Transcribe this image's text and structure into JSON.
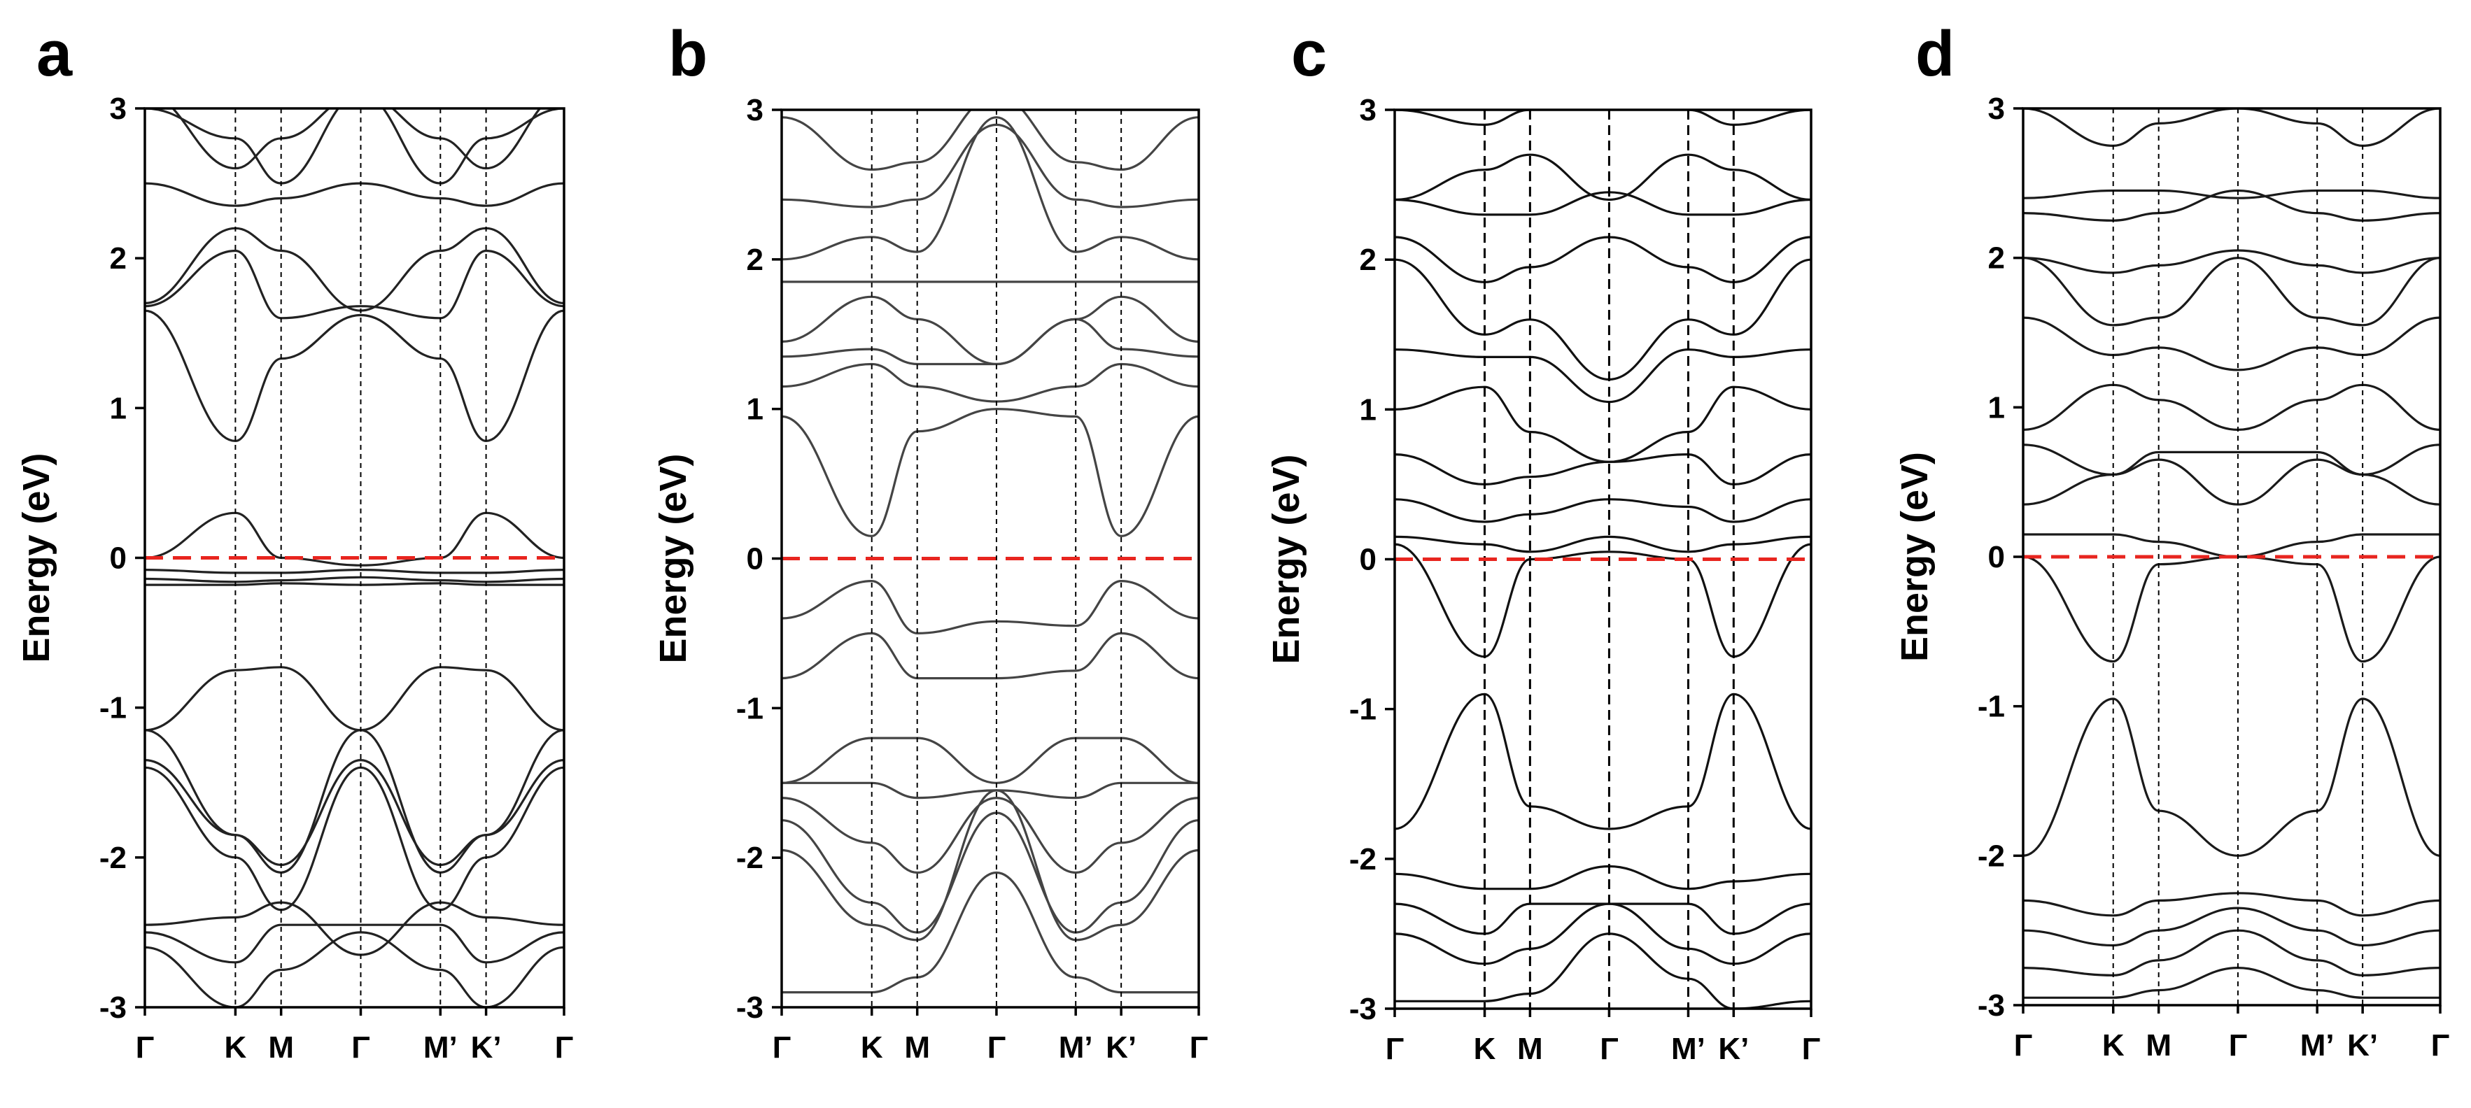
{
  "figure": {
    "panels": [
      "a",
      "b",
      "c",
      "d"
    ]
  },
  "colors": {
    "band": "#1a1a1a",
    "fermi_level": "#e8251f",
    "axes": "#000000",
    "kpoint_divider": "#000000"
  },
  "chart_data": [
    {
      "panel": "a",
      "type": "line",
      "ylabel": "Energy (eV)",
      "ylim": [
        -3,
        3
      ],
      "yticks": [
        "3",
        "2",
        "1",
        "0",
        "-1",
        "-2",
        "-3"
      ],
      "kpath": [
        "Γ",
        "K",
        "M",
        "Γ",
        "M’",
        "K’",
        "Γ"
      ],
      "fermi_level": 0,
      "band_color": "#222222",
      "series": [
        {
          "name": "band-1",
          "values": [
            -2.6,
            -3.0,
            -2.75,
            -2.5,
            -2.75,
            -3.0,
            -2.6
          ]
        },
        {
          "name": "band-2",
          "values": [
            -2.5,
            -2.7,
            -2.45,
            -2.45,
            -2.45,
            -2.7,
            -2.5
          ]
        },
        {
          "name": "band-3",
          "values": [
            -2.45,
            -2.4,
            -2.3,
            -2.65,
            -2.3,
            -2.4,
            -2.45
          ]
        },
        {
          "name": "band-4",
          "values": [
            -1.4,
            -2.0,
            -2.35,
            -1.4,
            -2.35,
            -2.0,
            -1.4
          ]
        },
        {
          "name": "band-5",
          "values": [
            -1.35,
            -1.85,
            -2.05,
            -1.35,
            -2.05,
            -1.85,
            -1.35
          ]
        },
        {
          "name": "band-6",
          "values": [
            -1.15,
            -1.85,
            -2.1,
            -1.15,
            -2.1,
            -1.85,
            -1.15
          ]
        },
        {
          "name": "band-7",
          "values": [
            -1.15,
            -0.75,
            -0.73,
            -1.15,
            -0.73,
            -0.75,
            -1.15
          ]
        },
        {
          "name": "band-8",
          "values": [
            -0.18,
            -0.18,
            -0.17,
            -0.18,
            -0.17,
            -0.18,
            -0.18
          ]
        },
        {
          "name": "band-9",
          "values": [
            -0.14,
            -0.16,
            -0.15,
            -0.13,
            -0.15,
            -0.16,
            -0.14
          ]
        },
        {
          "name": "band-10",
          "values": [
            -0.08,
            -0.1,
            -0.1,
            -0.08,
            -0.1,
            -0.1,
            -0.08
          ]
        },
        {
          "name": "band-11",
          "values": [
            0.0,
            0.3,
            0.0,
            -0.05,
            0.0,
            0.3,
            0.0
          ]
        },
        {
          "name": "band-12",
          "values": [
            1.65,
            0.78,
            1.33,
            1.62,
            1.33,
            0.78,
            1.65
          ]
        },
        {
          "name": "band-13",
          "values": [
            1.68,
            2.05,
            1.6,
            1.68,
            1.6,
            2.05,
            1.68
          ]
        },
        {
          "name": "band-14",
          "values": [
            1.7,
            2.2,
            2.05,
            1.65,
            2.05,
            2.2,
            1.7
          ]
        },
        {
          "name": "band-15",
          "values": [
            2.5,
            2.35,
            2.4,
            2.5,
            2.4,
            2.35,
            2.5
          ]
        },
        {
          "name": "band-16",
          "values": [
            3.0,
            2.8,
            2.5,
            3.1,
            2.5,
            2.8,
            3.0
          ]
        },
        {
          "name": "band-17",
          "values": [
            3.1,
            2.6,
            2.8,
            3.1,
            2.8,
            2.6,
            3.1
          ]
        }
      ]
    },
    {
      "panel": "b",
      "type": "line",
      "ylabel": "Energy (eV)",
      "ylim": [
        -3,
        3
      ],
      "yticks": [
        "3",
        "2",
        "1",
        "0",
        "-1",
        "-2",
        "-3"
      ],
      "kpath": [
        "Γ",
        "K",
        "M",
        "Γ",
        "M’",
        "K’",
        "Γ"
      ],
      "fermi_level": 0,
      "band_color": "#444444",
      "series": [
        {
          "name": "band-1",
          "values": [
            -2.9,
            -2.9,
            -2.8,
            -2.1,
            -2.8,
            -2.9,
            -2.9
          ]
        },
        {
          "name": "band-2",
          "values": [
            -1.95,
            -2.45,
            -2.55,
            -1.55,
            -2.55,
            -2.45,
            -1.95
          ]
        },
        {
          "name": "band-3",
          "values": [
            -1.75,
            -2.3,
            -2.5,
            -1.7,
            -2.5,
            -2.3,
            -1.75
          ]
        },
        {
          "name": "band-4",
          "values": [
            -1.6,
            -1.9,
            -2.1,
            -1.6,
            -2.1,
            -1.9,
            -1.6
          ]
        },
        {
          "name": "band-5",
          "values": [
            -1.5,
            -1.5,
            -1.6,
            -1.55,
            -1.6,
            -1.5,
            -1.5
          ]
        },
        {
          "name": "band-6",
          "values": [
            -1.5,
            -1.2,
            -1.2,
            -1.5,
            -1.2,
            -1.2,
            -1.5
          ]
        },
        {
          "name": "band-7",
          "values": [
            -0.8,
            -0.5,
            -0.8,
            -0.8,
            -0.75,
            -0.5,
            -0.8
          ]
        },
        {
          "name": "band-8",
          "values": [
            -0.4,
            -0.15,
            -0.5,
            -0.42,
            -0.45,
            -0.15,
            -0.4
          ]
        },
        {
          "name": "band-9",
          "values": [
            0.95,
            0.15,
            0.85,
            1.0,
            0.95,
            0.15,
            0.95
          ]
        },
        {
          "name": "band-10",
          "values": [
            1.15,
            1.3,
            1.15,
            1.05,
            1.15,
            1.3,
            1.15
          ]
        },
        {
          "name": "band-11",
          "values": [
            1.35,
            1.4,
            1.3,
            1.3,
            1.6,
            1.4,
            1.35
          ]
        },
        {
          "name": "band-12",
          "values": [
            1.45,
            1.75,
            1.6,
            1.3,
            1.6,
            1.75,
            1.45
          ]
        },
        {
          "name": "band-13",
          "values": [
            1.85,
            1.85,
            1.85,
            1.85,
            1.85,
            1.85,
            1.85
          ]
        },
        {
          "name": "band-14",
          "values": [
            2.0,
            2.15,
            2.05,
            2.95,
            2.05,
            2.15,
            2.0
          ]
        },
        {
          "name": "band-15",
          "values": [
            2.4,
            2.35,
            2.4,
            2.9,
            2.4,
            2.35,
            2.4
          ]
        },
        {
          "name": "band-16",
          "values": [
            2.95,
            2.6,
            2.65,
            3.1,
            2.65,
            2.6,
            2.95
          ]
        }
      ]
    },
    {
      "panel": "c",
      "type": "line",
      "ylabel": "Energy (eV)",
      "ylim": [
        -3,
        3
      ],
      "yticks": [
        "3",
        "2",
        "1",
        "0",
        "-1",
        "-2",
        "-3"
      ],
      "kpath": [
        "Γ",
        "K",
        "M",
        "Γ",
        "M’",
        "K’",
        "Γ"
      ],
      "fermi_level": 0,
      "band_color": "#111111",
      "series": [
        {
          "name": "band-1",
          "values": [
            -2.95,
            -2.95,
            -2.9,
            -2.5,
            -2.8,
            -3.0,
            -2.95
          ]
        },
        {
          "name": "band-2",
          "values": [
            -2.5,
            -2.7,
            -2.6,
            -2.3,
            -2.6,
            -2.7,
            -2.5
          ]
        },
        {
          "name": "band-3",
          "values": [
            -2.3,
            -2.5,
            -2.3,
            -2.3,
            -2.3,
            -2.5,
            -2.3
          ]
        },
        {
          "name": "band-4",
          "values": [
            -2.1,
            -2.2,
            -2.2,
            -2.05,
            -2.2,
            -2.15,
            -2.1
          ]
        },
        {
          "name": "band-5",
          "values": [
            -1.8,
            -0.9,
            -1.65,
            -1.8,
            -1.65,
            -0.9,
            -1.8
          ]
        },
        {
          "name": "band-6",
          "values": [
            0.1,
            -0.65,
            0.0,
            0.05,
            0.0,
            -0.65,
            0.1
          ]
        },
        {
          "name": "band-7",
          "values": [
            0.15,
            0.1,
            0.05,
            0.15,
            0.05,
            0.1,
            0.15
          ]
        },
        {
          "name": "band-8",
          "values": [
            0.4,
            0.25,
            0.3,
            0.4,
            0.35,
            0.25,
            0.4
          ]
        },
        {
          "name": "band-9",
          "values": [
            0.7,
            0.5,
            0.55,
            0.65,
            0.7,
            0.5,
            0.7
          ]
        },
        {
          "name": "band-10",
          "values": [
            1.0,
            1.15,
            0.85,
            0.65,
            0.85,
            1.15,
            1.0
          ]
        },
        {
          "name": "band-11",
          "values": [
            1.4,
            1.35,
            1.35,
            1.05,
            1.4,
            1.35,
            1.4
          ]
        },
        {
          "name": "band-12",
          "values": [
            2.0,
            1.5,
            1.6,
            1.2,
            1.6,
            1.5,
            2.0
          ]
        },
        {
          "name": "band-13",
          "values": [
            2.15,
            1.85,
            1.95,
            2.15,
            1.95,
            1.85,
            2.15
          ]
        },
        {
          "name": "band-14",
          "values": [
            2.4,
            2.3,
            2.3,
            2.45,
            2.3,
            2.3,
            2.4
          ]
        },
        {
          "name": "band-15",
          "values": [
            2.4,
            2.6,
            2.7,
            2.4,
            2.7,
            2.6,
            2.4
          ]
        },
        {
          "name": "band-16",
          "values": [
            3.0,
            2.9,
            3.0,
            3.1,
            3.0,
            2.9,
            3.0
          ]
        }
      ]
    },
    {
      "panel": "d",
      "type": "line",
      "ylabel": "Energy (eV)",
      "ylim": [
        -3,
        3
      ],
      "yticks": [
        "3",
        "2",
        "1",
        "0",
        "-1",
        "-2",
        "-3"
      ],
      "kpath": [
        "Γ",
        "K",
        "M",
        "Γ",
        "M’",
        "K’",
        "Γ"
      ],
      "fermi_level": 0,
      "band_color": "#1a1a1a",
      "series": [
        {
          "name": "band-1",
          "values": [
            -2.95,
            -2.95,
            -2.9,
            -2.75,
            -2.9,
            -2.95,
            -2.95
          ]
        },
        {
          "name": "band-2",
          "values": [
            -2.75,
            -2.8,
            -2.7,
            -2.5,
            -2.7,
            -2.8,
            -2.75
          ]
        },
        {
          "name": "band-3",
          "values": [
            -2.5,
            -2.6,
            -2.5,
            -2.35,
            -2.5,
            -2.6,
            -2.5
          ]
        },
        {
          "name": "band-4",
          "values": [
            -2.3,
            -2.4,
            -2.3,
            -2.25,
            -2.3,
            -2.4,
            -2.3
          ]
        },
        {
          "name": "band-5",
          "values": [
            -2.0,
            -0.95,
            -1.7,
            -2.0,
            -1.7,
            -0.95,
            -2.0
          ]
        },
        {
          "name": "band-6",
          "values": [
            0.0,
            -0.7,
            -0.05,
            0.0,
            -0.05,
            -0.7,
            0.0
          ]
        },
        {
          "name": "band-7",
          "values": [
            0.15,
            0.15,
            0.1,
            0.0,
            0.1,
            0.15,
            0.15
          ]
        },
        {
          "name": "band-8",
          "values": [
            0.35,
            0.55,
            0.65,
            0.35,
            0.65,
            0.55,
            0.35
          ]
        },
        {
          "name": "band-9",
          "values": [
            0.75,
            0.55,
            0.7,
            0.7,
            0.7,
            0.55,
            0.75
          ]
        },
        {
          "name": "band-10",
          "values": [
            0.85,
            1.15,
            1.05,
            0.85,
            1.05,
            1.15,
            0.85
          ]
        },
        {
          "name": "band-11",
          "values": [
            1.6,
            1.35,
            1.4,
            1.25,
            1.4,
            1.35,
            1.6
          ]
        },
        {
          "name": "band-12",
          "values": [
            2.0,
            1.55,
            1.6,
            2.0,
            1.6,
            1.55,
            2.0
          ]
        },
        {
          "name": "band-13",
          "values": [
            2.0,
            1.9,
            1.95,
            2.05,
            1.95,
            1.9,
            2.0
          ]
        },
        {
          "name": "band-14",
          "values": [
            2.3,
            2.25,
            2.3,
            2.45,
            2.3,
            2.25,
            2.3
          ]
        },
        {
          "name": "band-15",
          "values": [
            2.4,
            2.45,
            2.45,
            2.4,
            2.45,
            2.45,
            2.4
          ]
        },
        {
          "name": "band-16",
          "values": [
            3.0,
            2.75,
            2.9,
            3.0,
            2.9,
            2.75,
            3.0
          ]
        }
      ]
    }
  ]
}
